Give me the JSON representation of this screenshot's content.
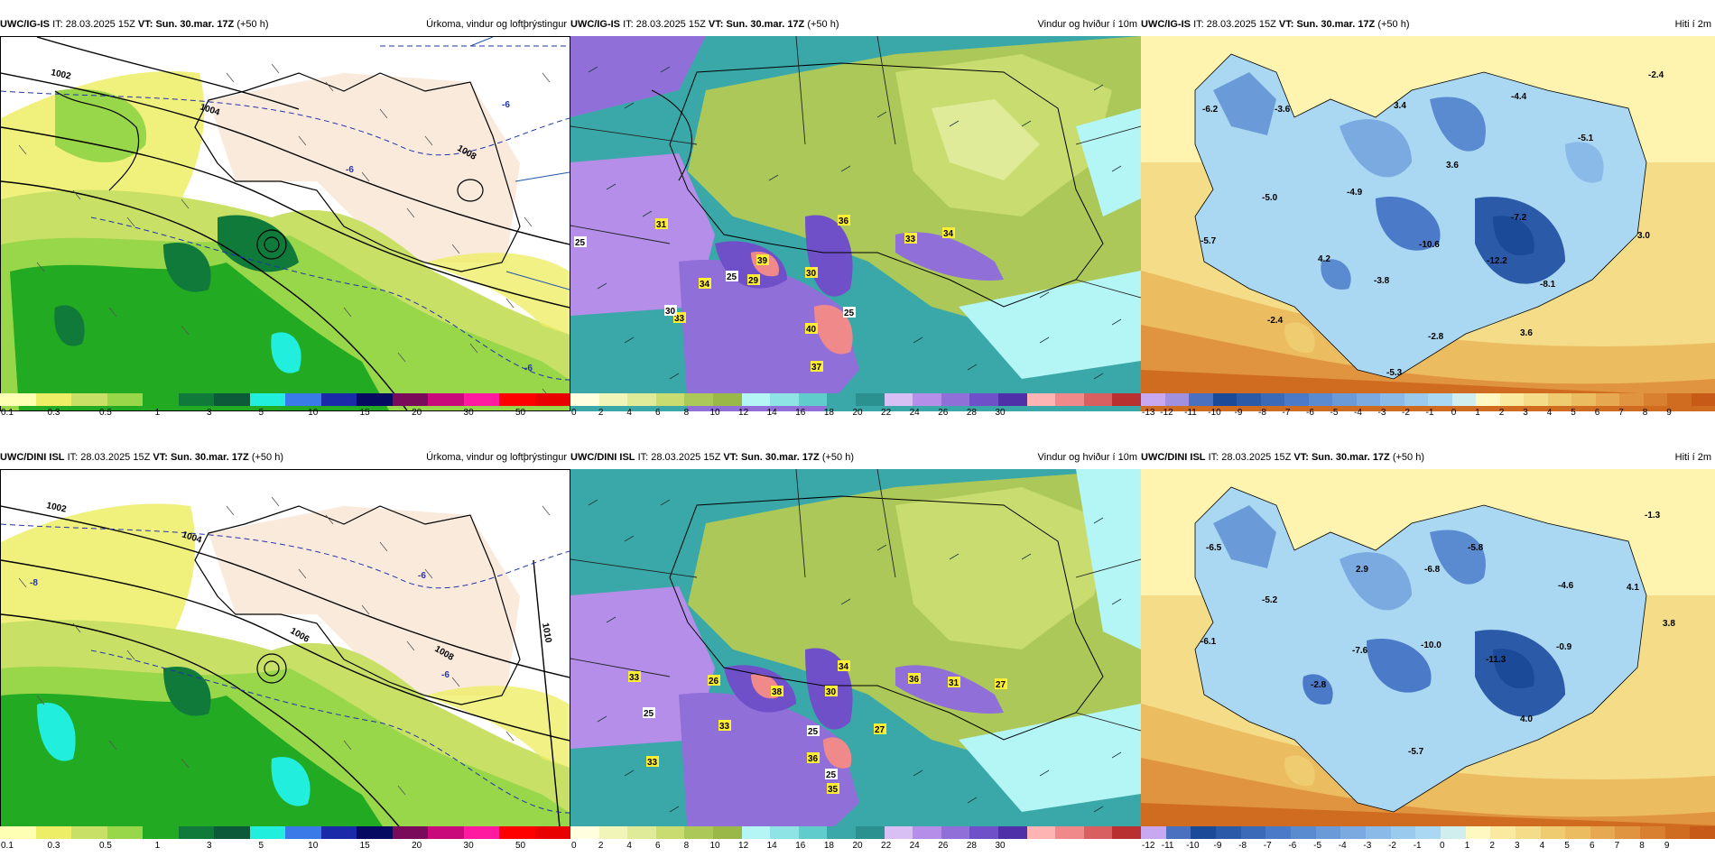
{
  "rows": [
    {
      "model": "UWC/IG-IS",
      "it_label": "IT:",
      "it_value": "28.03.2025 15Z",
      "vt_label": "VT:",
      "vt_value": "Sun. 30.mar. 17Z",
      "lead": "(+50 h)",
      "panels": [
        {
          "title": "Úrkoma, vindur og loftþrýstingur",
          "isobars": [
            "1002",
            "1004",
            "1008"
          ],
          "temp_labels": [
            "-6",
            "-6",
            "-6"
          ],
          "gust_labels": [],
          "temp_values": []
        },
        {
          "title": "Vindur og hviður í 10m",
          "isobars": [],
          "temp_labels": [],
          "gust_labels": [
            "31",
            "39",
            "36",
            "33",
            "34",
            "34",
            "29",
            "30",
            "33",
            "40",
            "37",
            "25",
            "25",
            "25",
            "30"
          ],
          "temp_values": []
        },
        {
          "title": "Hiti í 2m",
          "isobars": [],
          "temp_labels": [],
          "gust_labels": [],
          "temp_values": [
            "-6.2",
            "-3.6",
            "3.4",
            "-4.4",
            "-2.4",
            "-5.1",
            "3.6",
            "-4.9",
            "-5.0",
            "-7.2",
            "3.0",
            "-5.7",
            "4.2",
            "-10.6",
            "-12.2",
            "-8.1",
            "-3.8",
            "-2.4",
            "-2.8",
            "3.6",
            "-5.3"
          ]
        }
      ]
    },
    {
      "model": "UWC/DINI ISL",
      "it_label": "IT:",
      "it_value": "28.03.2025 15Z",
      "vt_label": "VT:",
      "vt_value": "Sun. 30.mar. 17Z",
      "lead": "(+50 h)",
      "panels": [
        {
          "title": "Úrkoma, vindur og loftþrýstingur",
          "isobars": [
            "1002",
            "1004",
            "1006",
            "1008",
            "1010"
          ],
          "temp_labels": [
            "-6",
            "-8",
            "-6"
          ],
          "gust_labels": [],
          "temp_values": []
        },
        {
          "title": "Vindur og hviður í 10m",
          "isobars": [],
          "temp_labels": [],
          "gust_labels": [
            "33",
            "26",
            "38",
            "30",
            "34",
            "36",
            "31",
            "27",
            "33",
            "33",
            "27",
            "36",
            "35",
            "25",
            "25",
            "25"
          ],
          "temp_values": []
        },
        {
          "title": "Hiti í 2m",
          "isobars": [],
          "temp_labels": [],
          "gust_labels": [],
          "temp_values": [
            "-6.5",
            "-1.3",
            "-5.8",
            "2.9",
            "-6.8",
            "-4.6",
            "-5.2",
            "4.1",
            "3.8",
            "-6.1",
            "-7.6",
            "-10.0",
            "-11.3",
            "-0.9",
            "-2.8",
            "4.0",
            "-5.7"
          ]
        }
      ]
    }
  ],
  "colorbars": {
    "precip": {
      "ticks": [
        "0.1",
        "0.3",
        "0.5",
        "1",
        "3",
        "5",
        "10",
        "15",
        "20",
        "30",
        "50"
      ],
      "colors": [
        "#ffffb3",
        "#eded66",
        "#c8e066",
        "#98d64a",
        "#22aa22",
        "#0f7a3a",
        "#0c5a3a",
        "#22eedd",
        "#3a7ae8",
        "#1a2aa8",
        "#060a60",
        "#7a0a5a",
        "#c80a7a",
        "#ff1aa0",
        "#ff0000",
        "#e80000"
      ]
    },
    "wind": {
      "ticks": [
        "0",
        "2",
        "4",
        "6",
        "8",
        "10",
        "12",
        "14",
        "16",
        "18",
        "20",
        "22",
        "24",
        "26",
        "28",
        "30"
      ],
      "colors": [
        "#ffffe0",
        "#f2f5b8",
        "#e0eb9a",
        "#c8dc70",
        "#acc858",
        "#9ab848",
        "#b4f5f5",
        "#8ee4e4",
        "#60cccc",
        "#3aa8a8",
        "#2a9090",
        "#d8c0f5",
        "#b48ee8",
        "#9070d8",
        "#7050c8",
        "#5030a8",
        "#ffb4b4",
        "#f08a8a",
        "#d86060",
        "#b83030"
      ]
    },
    "temp_top": {
      "ticks": [
        "-13",
        "-12",
        "-11",
        "-10",
        "-9",
        "-8",
        "-7",
        "-6",
        "-5",
        "-4",
        "-3",
        "-2",
        "-1",
        "0",
        "1",
        "2",
        "3",
        "4",
        "5",
        "6",
        "7",
        "8",
        "9"
      ],
      "colors": [
        "#c8a8f0",
        "#a090e0",
        "#4a70c0",
        "#1a4a98",
        "#2a5aa8",
        "#3a6ab8",
        "#4a7ac8",
        "#5a8ad0",
        "#6a9ad8",
        "#7aaae0",
        "#8abae8",
        "#9acaee",
        "#aad8f2",
        "#d0eeee",
        "#fff8c0",
        "#faeaa0",
        "#f5dc88",
        "#f0cc70",
        "#ebbc60",
        "#e6a850",
        "#e09440",
        "#d88030",
        "#d06c20",
        "#c85a18"
      ]
    },
    "temp_bottom": {
      "ticks": [
        "-12",
        "-11",
        "-10",
        "-9",
        "-8",
        "-7",
        "-6",
        "-5",
        "-4",
        "-3",
        "-2",
        "-1",
        "0",
        "1",
        "2",
        "3",
        "4",
        "5",
        "6",
        "7",
        "8",
        "9"
      ],
      "colors": [
        "#c8a8f0",
        "#4a70c0",
        "#1a4a98",
        "#2a5aa8",
        "#3a6ab8",
        "#4a7ac8",
        "#5a8ad0",
        "#6a9ad8",
        "#7aaae0",
        "#8abae8",
        "#9acaee",
        "#aad8f2",
        "#d0eeee",
        "#fff8c0",
        "#faeaa0",
        "#f5dc88",
        "#f0cc70",
        "#ebbc60",
        "#e6a850",
        "#e09440",
        "#d88030",
        "#d06c20",
        "#c85a18"
      ]
    }
  }
}
